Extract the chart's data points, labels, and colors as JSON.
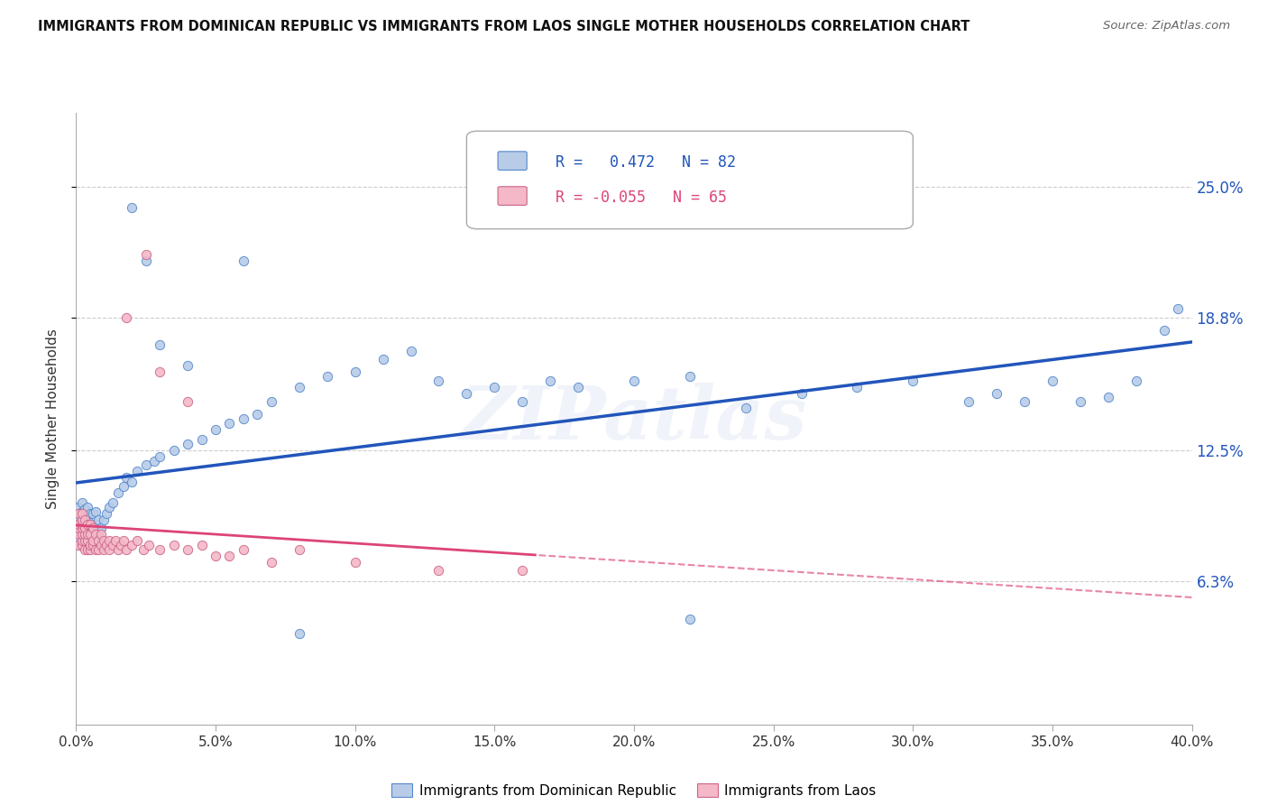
{
  "title": "IMMIGRANTS FROM DOMINICAN REPUBLIC VS IMMIGRANTS FROM LAOS SINGLE MOTHER HOUSEHOLDS CORRELATION CHART",
  "source": "Source: ZipAtlas.com",
  "ylabel": "Single Mother Households",
  "yticks": [
    0.063,
    0.125,
    0.188,
    0.25
  ],
  "ytick_labels": [
    "6.3%",
    "12.5%",
    "18.8%",
    "25.0%"
  ],
  "xlim": [
    0.0,
    0.4
  ],
  "ylim": [
    -0.005,
    0.285
  ],
  "blue_R": "0.472",
  "blue_N": "82",
  "pink_R": "-0.055",
  "pink_N": "65",
  "blue_face": "#B8CCE8",
  "blue_edge": "#5588CC",
  "pink_face": "#F4B8C8",
  "pink_edge": "#CC6688",
  "blue_line": "#2255BB",
  "pink_line": "#DD4477",
  "legend_blue": "Immigrants from Dominican Republic",
  "legend_pink": "Immigrants from Laos",
  "watermark": "ZIPatlas",
  "bg": "#FFFFFF",
  "grid_color": "#CCCCCC",
  "blue_x": [
    0.001,
    0.001,
    0.001,
    0.001,
    0.001,
    0.001,
    0.002,
    0.002,
    0.002,
    0.002,
    0.002,
    0.002,
    0.003,
    0.003,
    0.003,
    0.003,
    0.004,
    0.004,
    0.004,
    0.005,
    0.005,
    0.005,
    0.006,
    0.006,
    0.007,
    0.007,
    0.008,
    0.008,
    0.009,
    0.01,
    0.011,
    0.012,
    0.013,
    0.015,
    0.017,
    0.018,
    0.02,
    0.022,
    0.025,
    0.028,
    0.03,
    0.035,
    0.04,
    0.045,
    0.05,
    0.055,
    0.06,
    0.065,
    0.07,
    0.08,
    0.09,
    0.1,
    0.11,
    0.12,
    0.13,
    0.14,
    0.15,
    0.16,
    0.17,
    0.18,
    0.2,
    0.22,
    0.24,
    0.26,
    0.28,
    0.3,
    0.32,
    0.33,
    0.34,
    0.35,
    0.36,
    0.37,
    0.38,
    0.39,
    0.395,
    0.02,
    0.025,
    0.03,
    0.04,
    0.06,
    0.08,
    0.22
  ],
  "blue_y": [
    0.082,
    0.088,
    0.09,
    0.092,
    0.095,
    0.098,
    0.083,
    0.086,
    0.09,
    0.093,
    0.096,
    0.1,
    0.085,
    0.088,
    0.092,
    0.097,
    0.087,
    0.093,
    0.098,
    0.085,
    0.09,
    0.095,
    0.088,
    0.095,
    0.09,
    0.096,
    0.085,
    0.092,
    0.088,
    0.092,
    0.095,
    0.098,
    0.1,
    0.105,
    0.108,
    0.112,
    0.11,
    0.115,
    0.118,
    0.12,
    0.122,
    0.125,
    0.128,
    0.13,
    0.135,
    0.138,
    0.14,
    0.142,
    0.148,
    0.155,
    0.16,
    0.162,
    0.168,
    0.172,
    0.158,
    0.152,
    0.155,
    0.148,
    0.158,
    0.155,
    0.158,
    0.16,
    0.145,
    0.152,
    0.155,
    0.158,
    0.148,
    0.152,
    0.148,
    0.158,
    0.148,
    0.15,
    0.158,
    0.182,
    0.192,
    0.24,
    0.215,
    0.175,
    0.165,
    0.215,
    0.038,
    0.045
  ],
  "pink_x": [
    0.001,
    0.001,
    0.001,
    0.001,
    0.001,
    0.002,
    0.002,
    0.002,
    0.002,
    0.002,
    0.002,
    0.002,
    0.003,
    0.003,
    0.003,
    0.003,
    0.003,
    0.004,
    0.004,
    0.004,
    0.004,
    0.005,
    0.005,
    0.005,
    0.005,
    0.006,
    0.006,
    0.006,
    0.007,
    0.007,
    0.008,
    0.008,
    0.009,
    0.009,
    0.01,
    0.01,
    0.011,
    0.012,
    0.012,
    0.013,
    0.014,
    0.015,
    0.016,
    0.017,
    0.018,
    0.02,
    0.022,
    0.024,
    0.026,
    0.03,
    0.035,
    0.04,
    0.045,
    0.05,
    0.055,
    0.06,
    0.07,
    0.08,
    0.1,
    0.13,
    0.16,
    0.025,
    0.018,
    0.03,
    0.04
  ],
  "pink_y": [
    0.08,
    0.085,
    0.088,
    0.09,
    0.095,
    0.08,
    0.082,
    0.085,
    0.088,
    0.09,
    0.092,
    0.095,
    0.078,
    0.082,
    0.085,
    0.088,
    0.092,
    0.078,
    0.082,
    0.085,
    0.09,
    0.078,
    0.08,
    0.085,
    0.09,
    0.08,
    0.082,
    0.088,
    0.078,
    0.085,
    0.078,
    0.082,
    0.08,
    0.085,
    0.078,
    0.082,
    0.08,
    0.078,
    0.082,
    0.08,
    0.082,
    0.078,
    0.08,
    0.082,
    0.078,
    0.08,
    0.082,
    0.078,
    0.08,
    0.078,
    0.08,
    0.078,
    0.08,
    0.075,
    0.075,
    0.078,
    0.072,
    0.078,
    0.072,
    0.068,
    0.068,
    0.218,
    0.188,
    0.162,
    0.148
  ]
}
